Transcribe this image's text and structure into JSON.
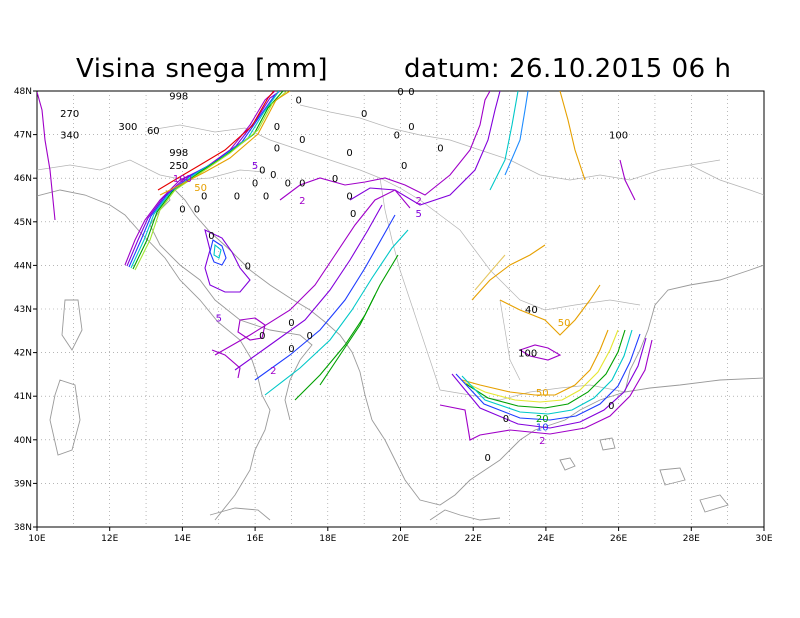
{
  "header": {
    "title": "Visina snega [mm]",
    "date_label": "datum: 26.10.2015   06 h"
  },
  "axes": {
    "lon_ticks": [
      "10E",
      "12E",
      "14E",
      "16E",
      "18E",
      "20E",
      "22E",
      "24E",
      "26E",
      "28E",
      "30E"
    ],
    "lat_ticks": [
      "48N",
      "47N",
      "46N",
      "45N",
      "44N",
      "43N",
      "42N",
      "41N",
      "40N",
      "39N",
      "38N"
    ],
    "lon_range": [
      10,
      30
    ],
    "lat_range": [
      38,
      48
    ]
  },
  "colors": {
    "c2": "#a000c8",
    "c5": "#8200dc",
    "c10": "#1e3cff",
    "c20": "#00c8c8",
    "c30": "#00a000",
    "c40": "#a0e632",
    "c50": "#e6a000",
    "c100": "#e60000",
    "coast": "#9a9a9a",
    "grid": "#8c8c8c"
  },
  "labels": [
    {
      "text": "270",
      "lon": 10.9,
      "lat": 47.5,
      "color": "#000000"
    },
    {
      "text": "340",
      "lon": 10.9,
      "lat": 47.0,
      "color": "#000000"
    },
    {
      "text": "998",
      "lon": 13.9,
      "lat": 47.9,
      "color": "#000000"
    },
    {
      "text": "300",
      "lon": 12.5,
      "lat": 47.2,
      "color": "#000000"
    },
    {
      "text": "60",
      "lon": 13.2,
      "lat": 47.1,
      "color": "#000000"
    },
    {
      "text": "998",
      "lon": 13.9,
      "lat": 46.6,
      "color": "#000000"
    },
    {
      "text": "250",
      "lon": 13.9,
      "lat": 46.3,
      "color": "#000000"
    },
    {
      "text": "100",
      "lon": 14.0,
      "lat": 46.0,
      "color": "#a000c8"
    },
    {
      "text": "50",
      "lon": 14.5,
      "lat": 45.8,
      "color": "#e6a000"
    },
    {
      "text": "5",
      "lon": 16.0,
      "lat": 46.3,
      "color": "#8200dc"
    },
    {
      "text": "0",
      "lon": 16.6,
      "lat": 47.2,
      "color": "#000000"
    },
    {
      "text": "0",
      "lon": 17.2,
      "lat": 47.8,
      "color": "#000000"
    },
    {
      "text": "0",
      "lon": 19.0,
      "lat": 47.5,
      "color": "#000000"
    },
    {
      "text": "0",
      "lon": 20.0,
      "lat": 48.0,
      "color": "#000000"
    },
    {
      "text": "0",
      "lon": 20.3,
      "lat": 48.0,
      "color": "#000000"
    },
    {
      "text": "0",
      "lon": 17.3,
      "lat": 46.9,
      "color": "#000000"
    },
    {
      "text": "0",
      "lon": 19.9,
      "lat": 47.0,
      "color": "#000000"
    },
    {
      "text": "0",
      "lon": 20.3,
      "lat": 47.2,
      "color": "#000000"
    },
    {
      "text": "0",
      "lon": 16.2,
      "lat": 46.2,
      "color": "#000000"
    },
    {
      "text": "0",
      "lon": 16.6,
      "lat": 46.7,
      "color": "#000000"
    },
    {
      "text": "0",
      "lon": 18.6,
      "lat": 46.6,
      "color": "#000000"
    },
    {
      "text": "0",
      "lon": 21.1,
      "lat": 46.7,
      "color": "#000000"
    },
    {
      "text": "0",
      "lon": 20.1,
      "lat": 46.3,
      "color": "#000000"
    },
    {
      "text": "0",
      "lon": 16.5,
      "lat": 46.1,
      "color": "#000000"
    },
    {
      "text": "0",
      "lon": 16.9,
      "lat": 45.9,
      "color": "#000000"
    },
    {
      "text": "0",
      "lon": 17.3,
      "lat": 45.9,
      "color": "#000000"
    },
    {
      "text": "0",
      "lon": 18.2,
      "lat": 46.0,
      "color": "#000000"
    },
    {
      "text": "0",
      "lon": 16.0,
      "lat": 45.9,
      "color": "#000000"
    },
    {
      "text": "0",
      "lon": 15.5,
      "lat": 45.6,
      "color": "#000000"
    },
    {
      "text": "0",
      "lon": 16.3,
      "lat": 45.6,
      "color": "#000000"
    },
    {
      "text": "0",
      "lon": 18.6,
      "lat": 45.6,
      "color": "#000000"
    },
    {
      "text": "0",
      "lon": 18.7,
      "lat": 45.2,
      "color": "#000000"
    },
    {
      "text": "2",
      "lon": 17.3,
      "lat": 45.5,
      "color": "#a000c8"
    },
    {
      "text": "0",
      "lon": 14.6,
      "lat": 45.6,
      "color": "#000000"
    },
    {
      "text": "0",
      "lon": 14.0,
      "lat": 45.3,
      "color": "#000000"
    },
    {
      "text": "0",
      "lon": 14.4,
      "lat": 45.3,
      "color": "#000000"
    },
    {
      "text": "2",
      "lon": 20.5,
      "lat": 45.5,
      "color": "#a000c8"
    },
    {
      "text": "5",
      "lon": 20.5,
      "lat": 45.2,
      "color": "#8200dc"
    },
    {
      "text": "0",
      "lon": 14.8,
      "lat": 44.7,
      "color": "#000000"
    },
    {
      "text": "0",
      "lon": 15.8,
      "lat": 44.0,
      "color": "#000000"
    },
    {
      "text": "5",
      "lon": 15.0,
      "lat": 42.8,
      "color": "#8200dc"
    },
    {
      "text": "0",
      "lon": 17.0,
      "lat": 42.7,
      "color": "#000000"
    },
    {
      "text": "0",
      "lon": 17.5,
      "lat": 42.4,
      "color": "#000000"
    },
    {
      "text": "0",
      "lon": 16.2,
      "lat": 42.4,
      "color": "#000000"
    },
    {
      "text": "0",
      "lon": 17.0,
      "lat": 42.1,
      "color": "#000000"
    },
    {
      "text": "2",
      "lon": 16.5,
      "lat": 41.6,
      "color": "#a000c8"
    },
    {
      "text": "40",
      "lon": 23.6,
      "lat": 43.0,
      "color": "#000000"
    },
    {
      "text": "50",
      "lon": 24.5,
      "lat": 42.7,
      "color": "#e6a000"
    },
    {
      "text": "100",
      "lon": 23.5,
      "lat": 42.0,
      "color": "#000000"
    },
    {
      "text": "50",
      "lon": 23.9,
      "lat": 41.1,
      "color": "#e6a000"
    },
    {
      "text": "20",
      "lon": 23.9,
      "lat": 40.5,
      "color": "#00a000"
    },
    {
      "text": "10",
      "lon": 23.9,
      "lat": 40.3,
      "color": "#1e3cff"
    },
    {
      "text": "2",
      "lon": 23.9,
      "lat": 40.0,
      "color": "#a000c8"
    },
    {
      "text": "0",
      "lon": 22.9,
      "lat": 40.5,
      "color": "#000000"
    },
    {
      "text": "0",
      "lon": 25.8,
      "lat": 40.8,
      "color": "#000000"
    },
    {
      "text": "0",
      "lon": 22.4,
      "lat": 39.6,
      "color": "#000000"
    },
    {
      "text": "100",
      "lon": 26.0,
      "lat": 47.0,
      "color": "#000000"
    }
  ]
}
